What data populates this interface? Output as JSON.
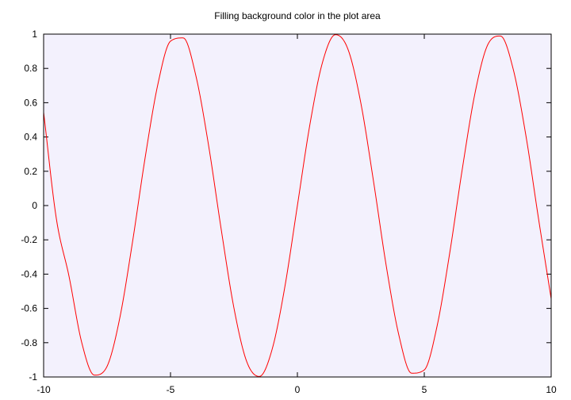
{
  "chart_data": {
    "type": "line",
    "title": "Filling background color in the plot area",
    "xlabel": "",
    "ylabel": "",
    "xlim": [
      -10,
      10
    ],
    "ylim": [
      -1,
      1
    ],
    "x_ticks": [
      -10,
      -5,
      0,
      5,
      10
    ],
    "x_tick_labels": [
      "-10",
      "-5",
      "0",
      "5",
      "10"
    ],
    "y_ticks": [
      -1,
      -0.8,
      -0.6,
      -0.4,
      -0.2,
      0,
      0.2,
      0.4,
      0.6,
      0.8,
      1
    ],
    "y_tick_labels": [
      "-1",
      "-0.8",
      "-0.6",
      "-0.4",
      "-0.2",
      "0",
      "0.2",
      "0.4",
      "0.6",
      "0.8",
      "1"
    ],
    "grid": false,
    "legend": "none",
    "plot_background_color": "#f3f1fd",
    "series": [
      {
        "color": "#ff0000",
        "x": [
          -10,
          -9.5,
          -9,
          -8.5,
          -8,
          -7.5,
          -7,
          -6.5,
          -6,
          -5.5,
          -5,
          -4.5,
          -4,
          -3.5,
          -3,
          -2.5,
          -2,
          -1.5,
          -1,
          -0.5,
          0,
          0.5,
          1,
          1.5,
          2,
          2.5,
          3,
          3.5,
          4,
          4.5,
          5,
          5.5,
          6,
          6.5,
          7,
          7.5,
          8,
          8.5,
          9,
          9.5,
          10
        ],
        "y": [
          0.544,
          -0.075,
          -0.412,
          -0.798,
          -0.989,
          -0.938,
          -0.657,
          -0.215,
          0.279,
          0.706,
          0.959,
          0.978,
          0.757,
          0.351,
          -0.141,
          -0.598,
          -0.909,
          -0.997,
          -0.841,
          -0.479,
          0,
          0.479,
          0.841,
          0.997,
          0.909,
          0.598,
          0.141,
          -0.351,
          -0.757,
          -0.978,
          -0.959,
          -0.706,
          -0.279,
          0.215,
          0.657,
          0.938,
          0.989,
          0.798,
          0.412,
          -0.075,
          -0.544
        ]
      }
    ]
  }
}
